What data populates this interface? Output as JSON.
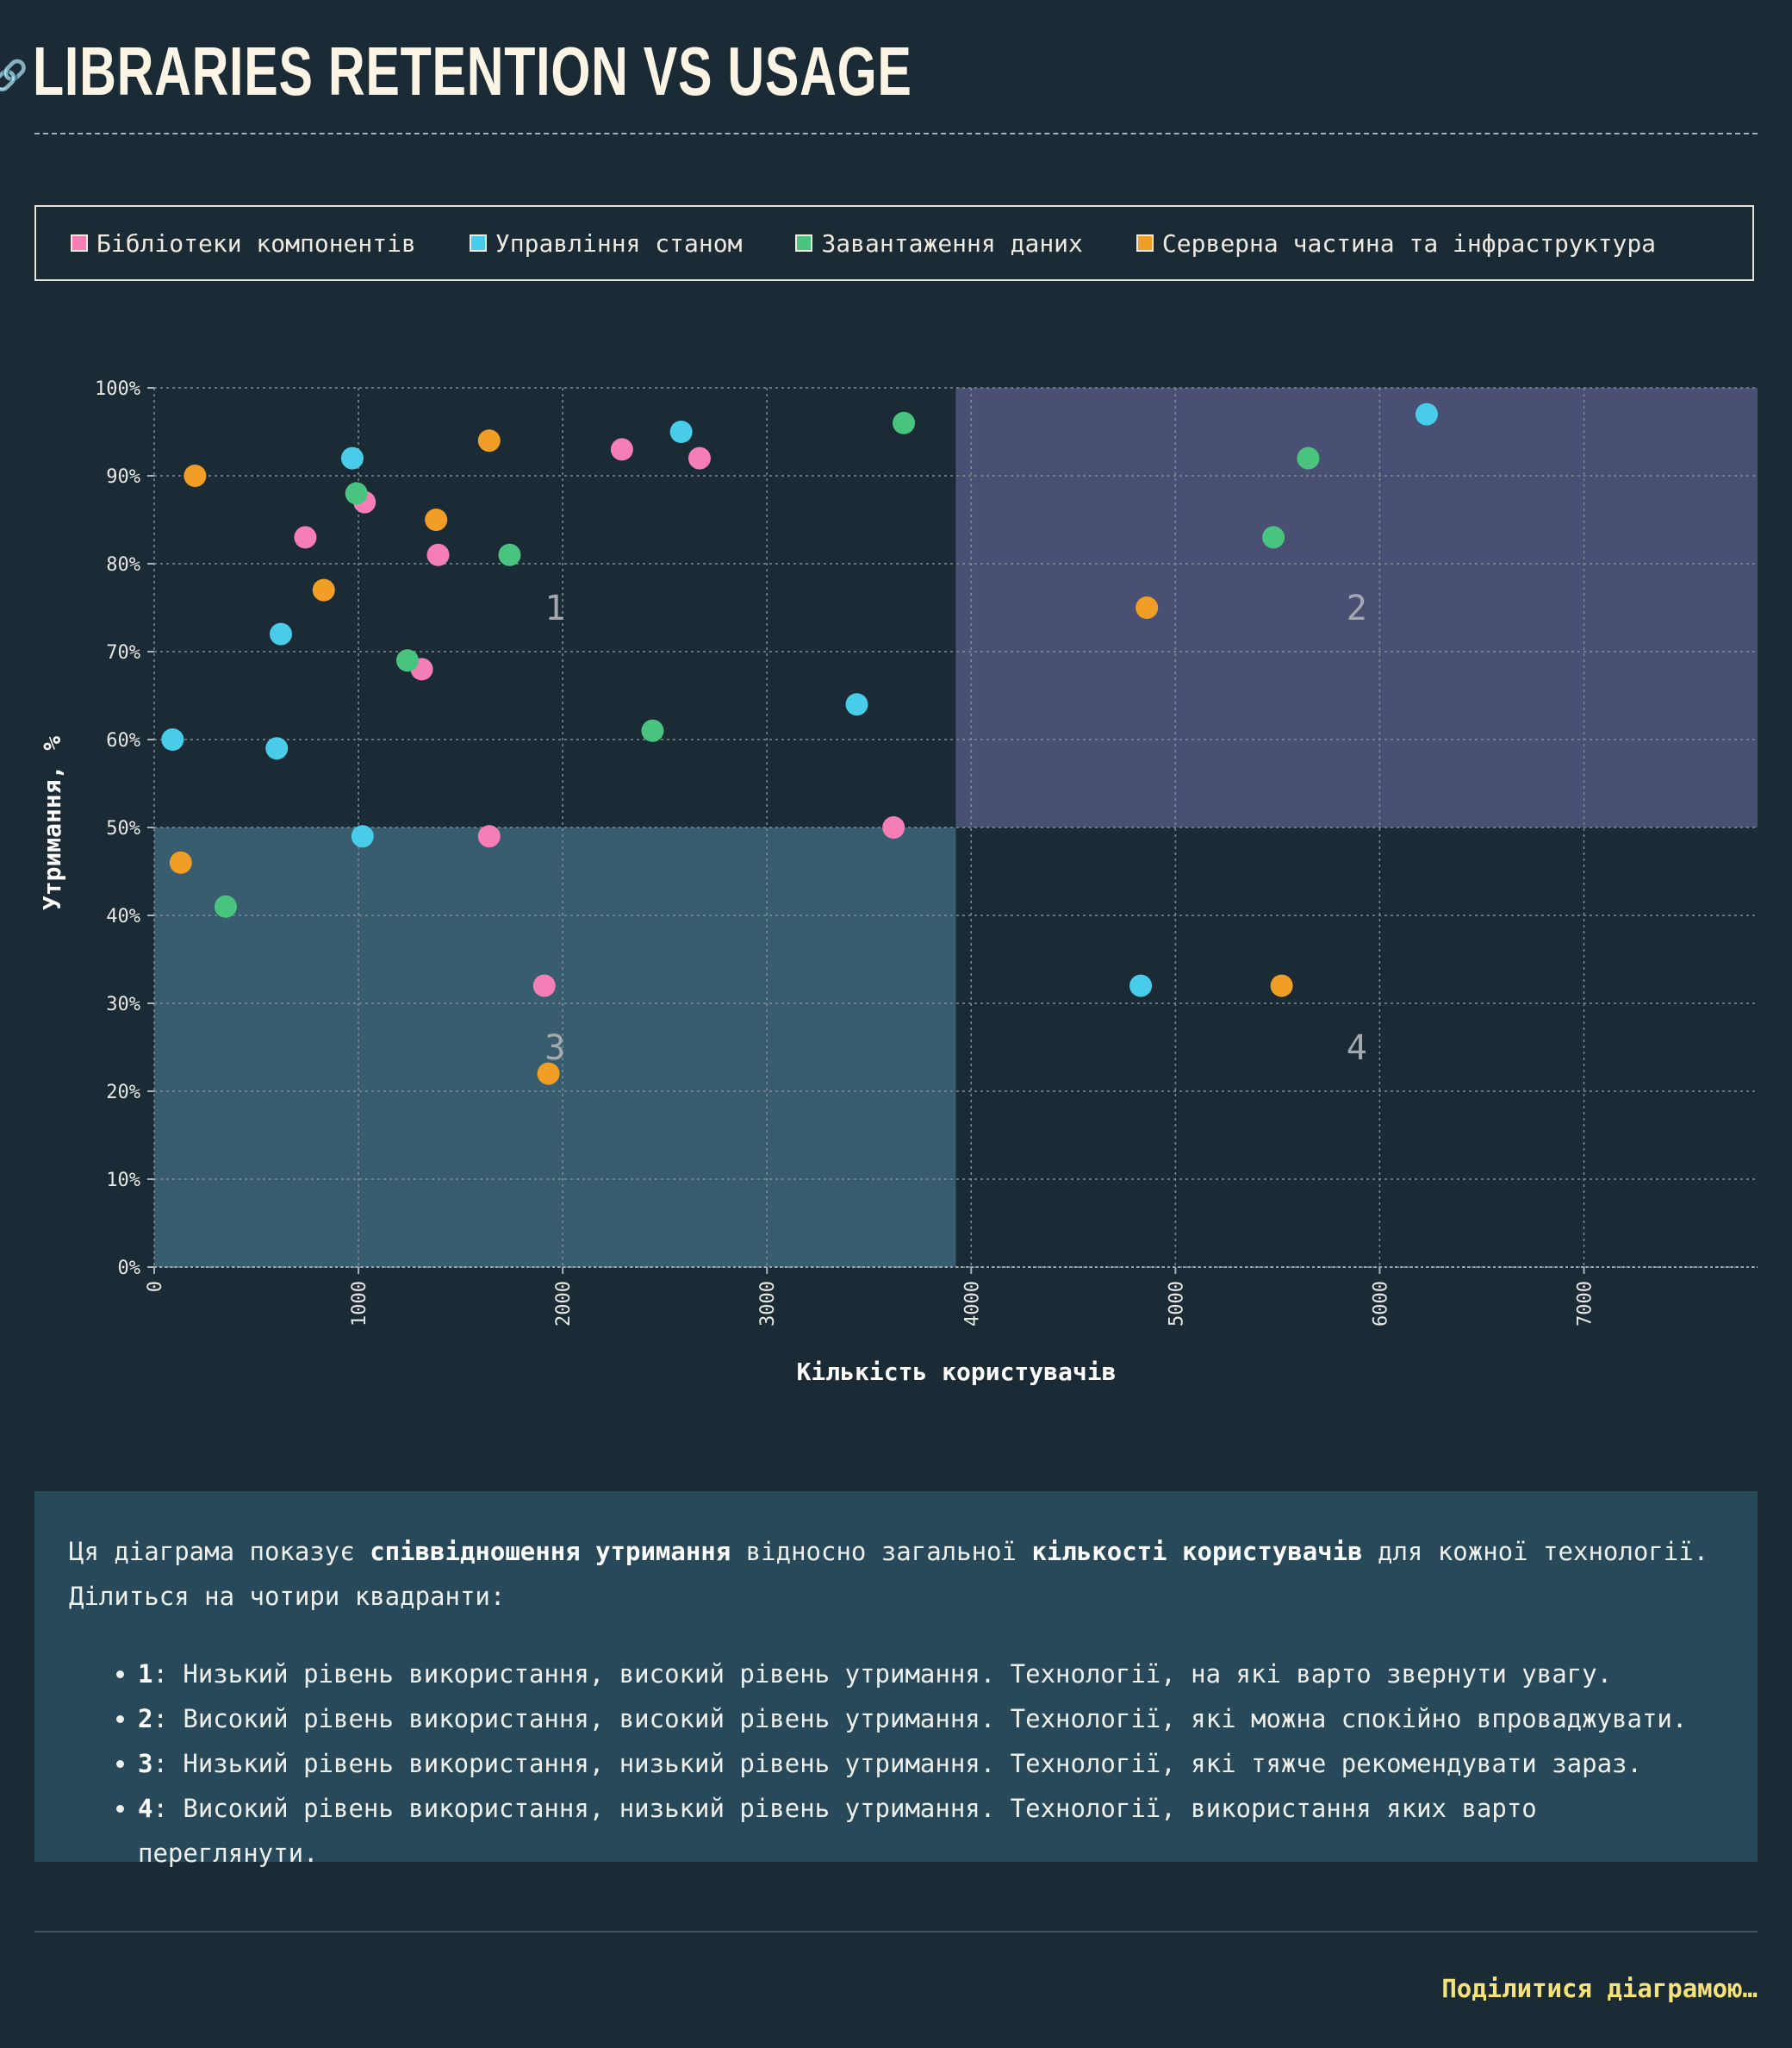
{
  "page": {
    "title": "LIBRARIES RETENTION VS USAGE",
    "link_icon": "link-icon",
    "share_label": "Поділитися діаграмою…"
  },
  "legend": [
    {
      "label": "Бібліотеки компонентів",
      "color": "#f57eb6"
    },
    {
      "label": "Управління станом",
      "color": "#48cce9"
    },
    {
      "label": "Завантаження даних",
      "color": "#49c47f"
    },
    {
      "label": "Серверна частина та інфраструктура",
      "color": "#f09e25"
    }
  ],
  "description": {
    "intro_1": "Ця діаграма показує ",
    "intro_bold_1": "співвідношення утримання",
    "intro_2": " відносно загальної ",
    "intro_bold_2": "кількості користувачів",
    "intro_3": " для кожної технології. Ділиться на чотири квадранти:",
    "items": [
      {
        "num": "1",
        "text": ": Низький рівень використання, високий рівень утримання. Технології, на які варто звернути увагу."
      },
      {
        "num": "2",
        "text": ": Високий рівень використання, високий рівень утримання. Технології, які можна спокійно впроваджувати."
      },
      {
        "num": "3",
        "text": ": Низький рівень використання, низький рівень утримання. Технології, які тяжче рекомендувати зараз."
      },
      {
        "num": "4",
        "text": ": Високий рівень використання, низький рівень утримання. Технології, використання яких варто переглянути."
      }
    ]
  },
  "chart_data": {
    "type": "scatter",
    "xlabel": "Кількість користувачів",
    "ylabel": "Утримання, %",
    "xlim": [
      0,
      7850
    ],
    "ylim": [
      0,
      100
    ],
    "x_ticks": [
      "0",
      "1000",
      "2000",
      "3000",
      "4000",
      "5000",
      "6000",
      "7000"
    ],
    "y_ticks": [
      "0%",
      "10%",
      "20%",
      "30%",
      "40%",
      "50%",
      "60%",
      "70%",
      "80%",
      "90%",
      "100%"
    ],
    "grid": true,
    "legend_position": "top",
    "quadrant_split": {
      "x": 3925,
      "y": 50
    },
    "quadrants": [
      {
        "label": "1",
        "color": "#1a2b35"
      },
      {
        "label": "2",
        "color": "#4a5073"
      },
      {
        "label": "3",
        "color": "#375d6e"
      },
      {
        "label": "4",
        "color": "#1a2b35"
      }
    ],
    "series": [
      {
        "name": "Бібліотеки компонентів",
        "color": "#f57eb6",
        "points": [
          [
            740,
            83
          ],
          [
            1030,
            87
          ],
          [
            1390,
            81
          ],
          [
            1310,
            68
          ],
          [
            1640,
            49
          ],
          [
            2290,
            93
          ],
          [
            2670,
            92
          ],
          [
            1910,
            32
          ],
          [
            3620,
            50
          ]
        ]
      },
      {
        "name": "Управління станом",
        "color": "#48cce9",
        "points": [
          [
            90,
            60
          ],
          [
            600,
            59
          ],
          [
            620,
            72
          ],
          [
            970,
            92
          ],
          [
            1020,
            49
          ],
          [
            2580,
            95
          ],
          [
            3440,
            64
          ],
          [
            4830,
            32
          ],
          [
            6230,
            97
          ]
        ]
      },
      {
        "name": "Завантаження даних",
        "color": "#49c47f",
        "points": [
          [
            350,
            41
          ],
          [
            990,
            88
          ],
          [
            1240,
            69
          ],
          [
            1740,
            81
          ],
          [
            2440,
            61
          ],
          [
            3670,
            96
          ],
          [
            5480,
            83
          ],
          [
            5650,
            92
          ]
        ]
      },
      {
        "name": "Серверна частина та інфраструктура",
        "color": "#f09e25",
        "points": [
          [
            130,
            46
          ],
          [
            200,
            90
          ],
          [
            830,
            77
          ],
          [
            1380,
            85
          ],
          [
            1640,
            94
          ],
          [
            1930,
            22
          ],
          [
            4860,
            75
          ],
          [
            5520,
            32
          ]
        ]
      }
    ]
  }
}
